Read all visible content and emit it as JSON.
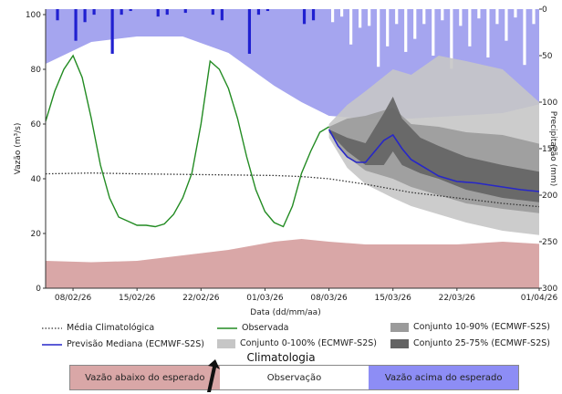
{
  "chart_data": {
    "type": "line",
    "title": "",
    "ylabel": "Vazão (m³/s)",
    "xlabel": "Data (dd/mm/aa)",
    "ylabel_right": "Precipitação (mm)",
    "ylim": [
      0,
      102
    ],
    "ylim_right": [
      0,
      300
    ],
    "xlim_days": [
      0,
      54
    ],
    "x_ticks": [
      "08/02/26",
      "15/02/26",
      "22/02/26",
      "01/03/26",
      "08/03/26",
      "15/03/26",
      "22/03/26",
      "01/04/26"
    ],
    "x_tick_days": [
      3,
      10,
      17,
      24,
      31,
      38,
      45,
      54
    ],
    "y_ticks": [
      0,
      20,
      40,
      60,
      80,
      100
    ],
    "y_ticks_right": [
      0,
      50,
      100,
      150,
      200,
      250,
      300
    ],
    "forecast_start_day": 31,
    "series": [
      {
        "name": "Média Climatológica",
        "style": "dotted",
        "x": [
          0,
          5,
          10,
          15,
          20,
          25,
          28,
          31,
          35,
          40,
          45,
          50,
          55,
          60
        ],
        "values": [
          41.8,
          42.1,
          41.8,
          41.6,
          41.4,
          41.2,
          40.8,
          40,
          38,
          35,
          33,
          31,
          29.5,
          28.5
        ]
      },
      {
        "name": "Observada",
        "color": "#228b22",
        "x": [
          0,
          1,
          2,
          3,
          4,
          5,
          6,
          7,
          8,
          9,
          10,
          11,
          12,
          13,
          14,
          15,
          16,
          17,
          18,
          19,
          20,
          21,
          22,
          23,
          24,
          25,
          26,
          27,
          28,
          29,
          30,
          31
        ],
        "values": [
          61,
          72,
          80,
          85,
          77,
          62,
          45,
          33,
          26,
          24.5,
          23,
          23,
          22.5,
          23.5,
          27,
          33,
          42,
          60,
          83,
          80,
          73,
          62,
          48,
          36,
          28,
          24,
          22.5,
          30,
          42,
          50,
          57,
          59
        ]
      },
      {
        "name": "Previsão Mediana (ECMWF-S2S)",
        "color": "#2727c8",
        "x": [
          31,
          32,
          33,
          34,
          35,
          36,
          37,
          38,
          39,
          40,
          41,
          42,
          43,
          45,
          47,
          50,
          52,
          55,
          57,
          60
        ],
        "values": [
          58,
          52,
          48,
          46,
          46,
          50,
          54,
          56,
          51,
          47,
          45,
          43,
          41,
          39,
          38.5,
          37,
          36,
          35,
          34.5,
          33
        ]
      }
    ],
    "bands": [
      {
        "name": "Conjunto 0-100% (ECMWF-S2S)",
        "color": "#c6c6c6",
        "x": [
          31,
          33,
          35,
          38,
          40,
          43,
          46,
          50,
          55,
          60
        ],
        "lower": [
          55,
          44,
          38,
          33,
          30,
          27,
          24,
          21,
          19,
          17
        ],
        "upper": [
          60,
          67,
          72,
          80,
          78,
          85,
          83,
          80,
          65,
          55
        ]
      },
      {
        "name": "Conjunto 10-90% (ECMWF-S2S)",
        "color": "#9b9b9b",
        "x": [
          31,
          33,
          35,
          38,
          40,
          43,
          46,
          50,
          55,
          60
        ],
        "lower": [
          57,
          48,
          43,
          40,
          37,
          34,
          31,
          29,
          27,
          25
        ],
        "upper": [
          59,
          62,
          63,
          66,
          60,
          59,
          57,
          56,
          52,
          49
        ]
      },
      {
        "name": "Conjunto 25-75% (ECMWF-S2S)",
        "color": "#636363",
        "x": [
          31,
          33,
          35,
          37,
          38,
          39,
          41,
          43,
          46,
          50,
          55,
          60
        ],
        "lower": [
          57,
          50,
          45,
          45,
          50,
          45,
          42,
          40,
          36,
          33,
          31,
          30
        ],
        "upper": [
          58,
          55,
          53,
          64,
          70,
          62,
          55,
          52,
          48,
          45,
          42,
          40
        ]
      }
    ],
    "climatology_bands": {
      "below_color": "#d9a7a7",
      "above_color": "#a5a5ef",
      "x": [
        0,
        5,
        10,
        15,
        20,
        25,
        28,
        31,
        35,
        40,
        45,
        50,
        55,
        60
      ],
      "below_upper": [
        10,
        9.5,
        10,
        12,
        14,
        17,
        18,
        17,
        16,
        16,
        16,
        17,
        16,
        16
      ],
      "above_lower": [
        82,
        90,
        92,
        92,
        86,
        74,
        68,
        63,
        62,
        62,
        63,
        64,
        68,
        70
      ]
    },
    "precipitation": {
      "observed_color": "#2020d0",
      "forecast_color": "#ffffff",
      "observed": [
        0,
        12,
        0,
        34,
        14,
        6,
        0,
        48,
        6,
        2,
        0,
        0,
        8,
        6,
        0,
        4,
        0,
        0,
        6,
        12,
        0,
        0,
        48,
        6,
        2,
        0,
        0,
        0,
        16,
        12,
        0
      ],
      "forecast": [
        14,
        8,
        38,
        20,
        18,
        62,
        40,
        16,
        46,
        32,
        16,
        50,
        12,
        64,
        18,
        40,
        10,
        52,
        16,
        34,
        9,
        60,
        16,
        48,
        14,
        22,
        35,
        14,
        55
      ]
    },
    "legend": {
      "clim_mean": "Média Climatológica",
      "observed": "Observada",
      "median": "Previsão Mediana (ECMWF-S2S)",
      "band_0_100": "Conjunto 0-100% (ECMWF-S2S)",
      "band_10_90": "Conjunto 10-90% (ECMWF-S2S)",
      "band_25_75": "Conjunto 25-75% (ECMWF-S2S)"
    }
  },
  "climatology_legend": {
    "title": "Climatologia",
    "below": "Vazão abaixo do esperado",
    "observation": "Observação",
    "above": "Vazão acima do esperado",
    "below_color": "#d9a7a7",
    "obs_color": "#ffffff",
    "above_color": "#8d8df5"
  }
}
